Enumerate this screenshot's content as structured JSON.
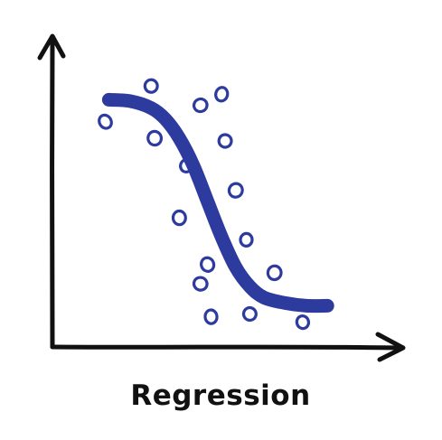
{
  "chart_data": {
    "type": "scatter",
    "title": "Regression",
    "xlabel": "",
    "ylabel": "",
    "xlim": [
      0,
      100
    ],
    "ylim": [
      0,
      100
    ],
    "grid": false,
    "legend": "none",
    "colors": {
      "axes": "#111111",
      "series": "#2d3a9e"
    },
    "points": [
      {
        "x": 15,
        "y": 82
      },
      {
        "x": 28,
        "y": 95
      },
      {
        "x": 29,
        "y": 76
      },
      {
        "x": 38,
        "y": 66
      },
      {
        "x": 36,
        "y": 47
      },
      {
        "x": 42,
        "y": 88
      },
      {
        "x": 48,
        "y": 92
      },
      {
        "x": 49,
        "y": 75
      },
      {
        "x": 52,
        "y": 57
      },
      {
        "x": 55,
        "y": 39
      },
      {
        "x": 44,
        "y": 30
      },
      {
        "x": 42,
        "y": 23
      },
      {
        "x": 45,
        "y": 11
      },
      {
        "x": 56,
        "y": 12
      },
      {
        "x": 63,
        "y": 27
      },
      {
        "x": 71,
        "y": 9
      }
    ],
    "fit": {
      "name": "",
      "x": [
        16,
        22,
        28,
        32,
        36,
        40,
        44,
        48,
        52,
        56,
        60,
        66,
        72,
        78
      ],
      "y": [
        90,
        89.5,
        87,
        83,
        76,
        66,
        53,
        40,
        29,
        22,
        18,
        16,
        15,
        15
      ]
    }
  }
}
